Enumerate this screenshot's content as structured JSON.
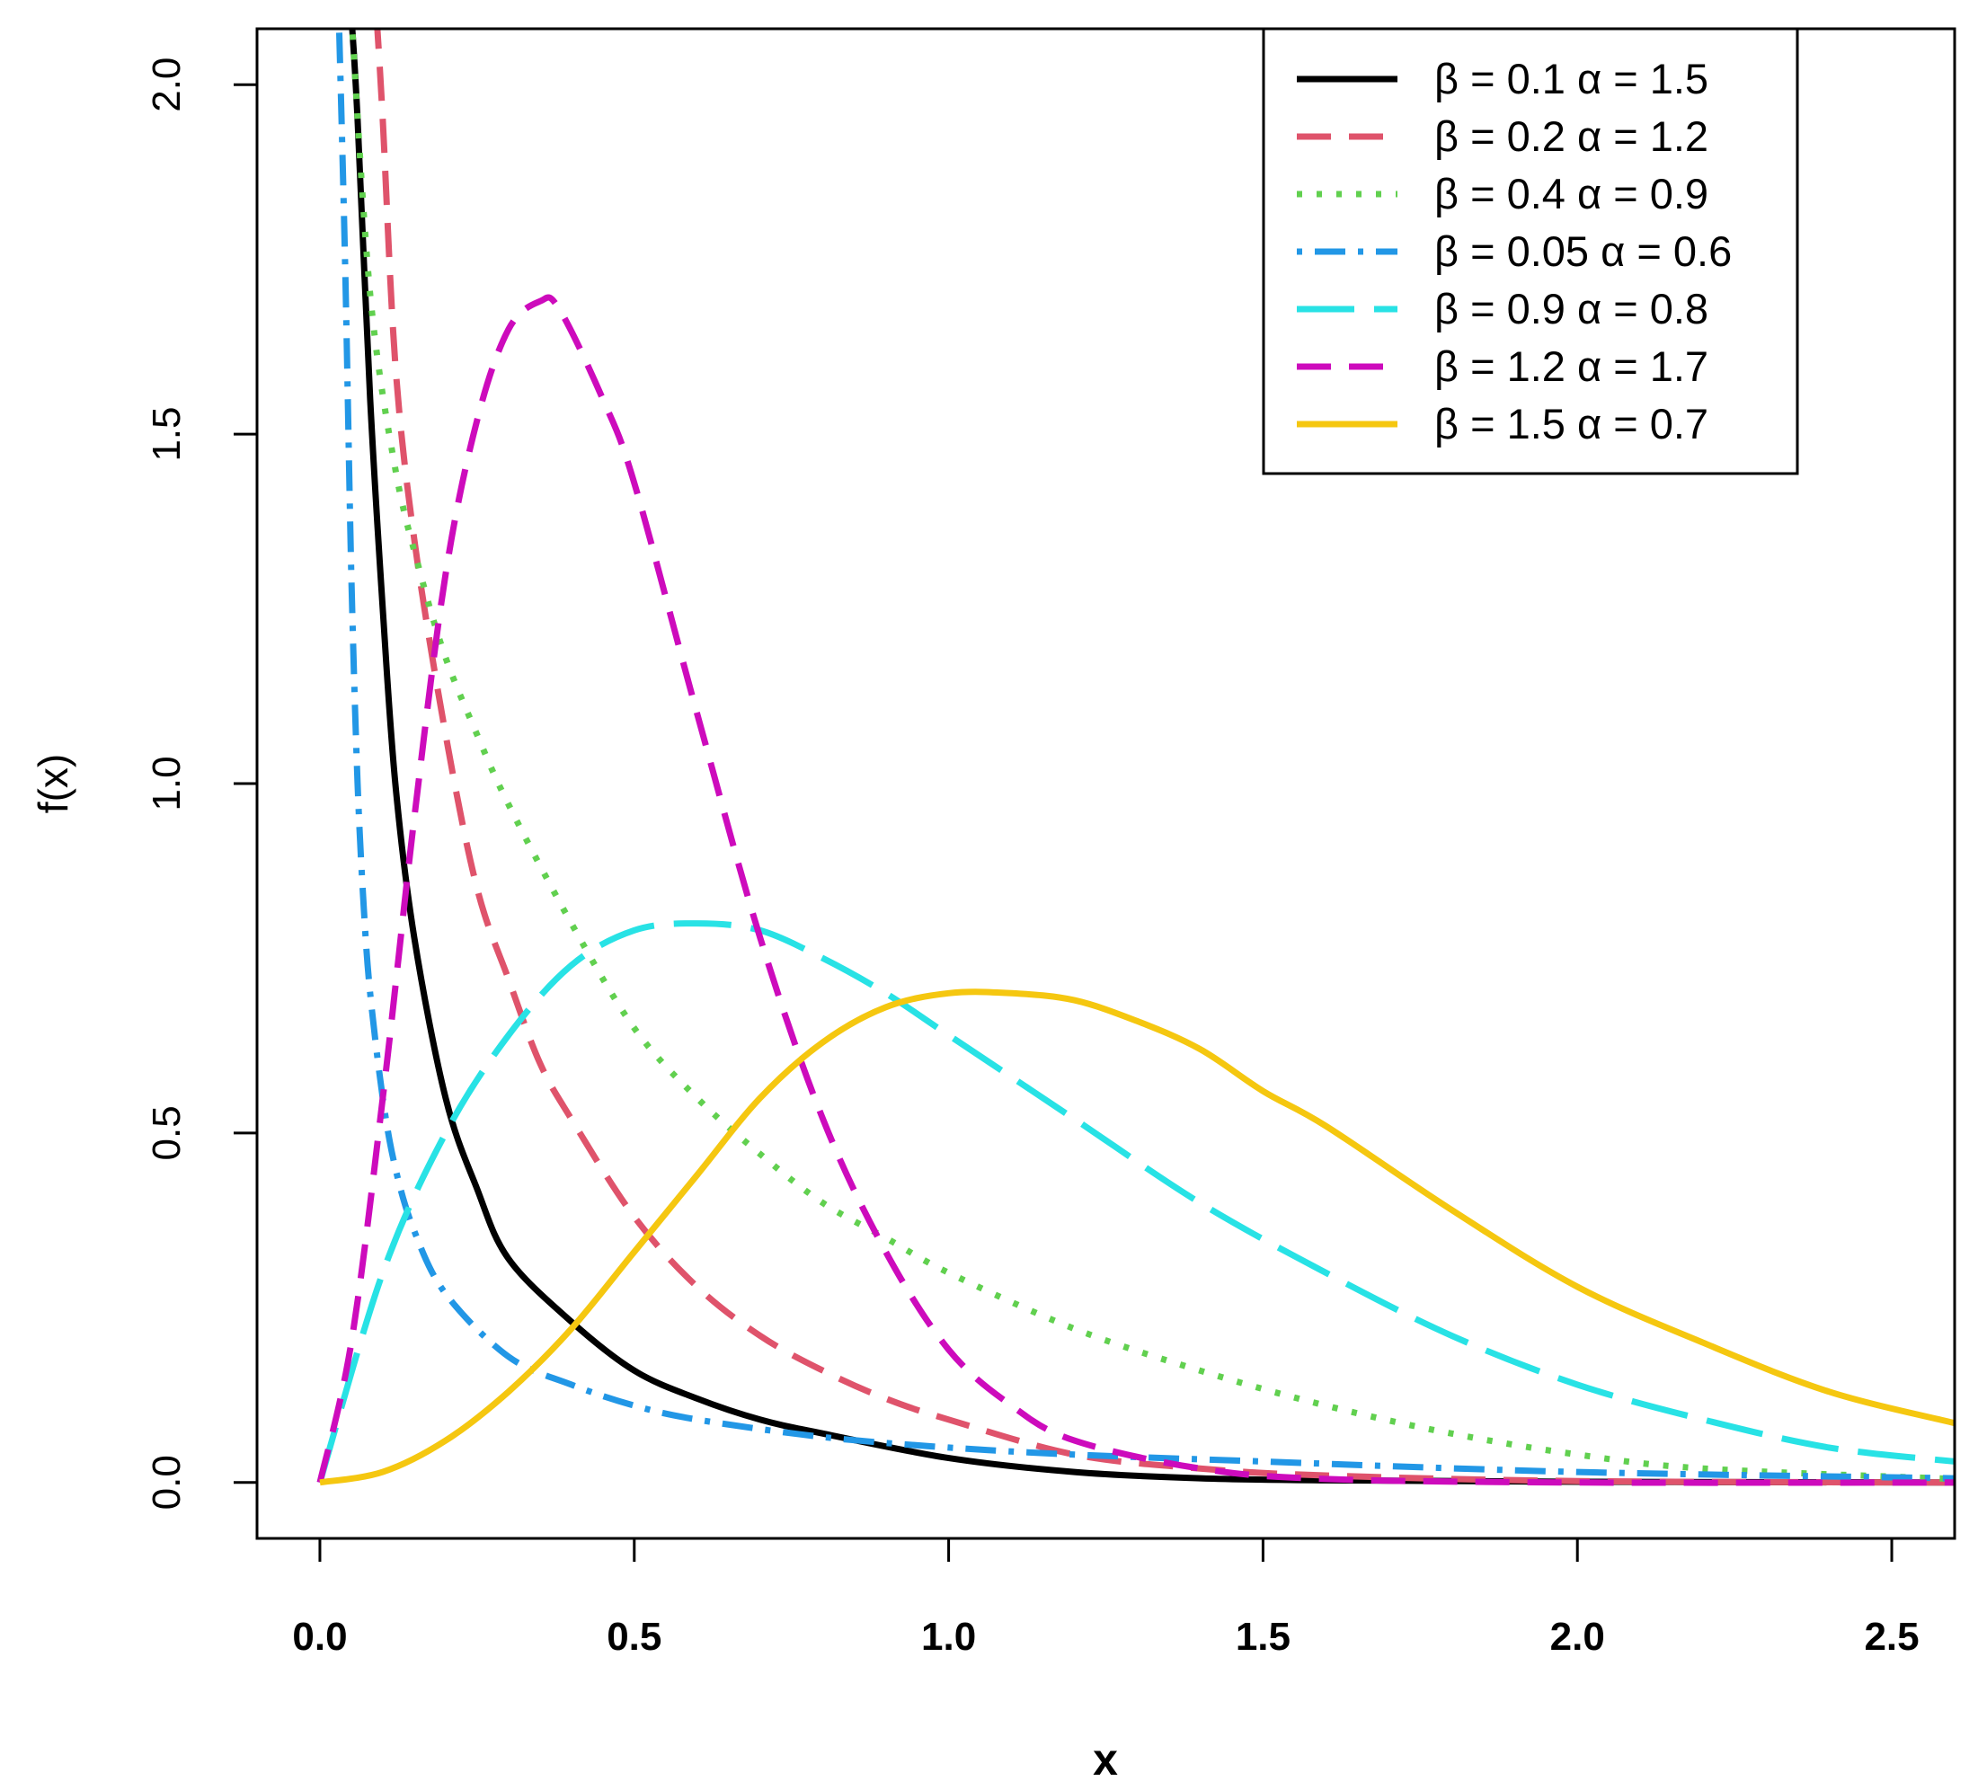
{
  "chart_data": {
    "type": "line",
    "xlabel": "x",
    "ylabel": "f(x)",
    "xlim": [
      -0.1,
      2.6
    ],
    "ylim": [
      -0.08,
      2.08
    ],
    "xticks": [
      "0.0",
      "0.5",
      "1.0",
      "1.5",
      "2.0",
      "2.5"
    ],
    "xtick_values": [
      0,
      0.5,
      1.0,
      1.5,
      2.0,
      2.5
    ],
    "yticks": [
      "0.0",
      "0.5",
      "1.0",
      "1.5",
      "2.0"
    ],
    "ytick_values": [
      0,
      0.5,
      1.0,
      1.5,
      2.0
    ],
    "grid": false,
    "legend_position": "top-right",
    "series": [
      {
        "name": "β = 0.1  α = 1.5",
        "color": "#000000",
        "style": "solid",
        "x": [
          0.05,
          0.06,
          0.08,
          0.1,
          0.12,
          0.15,
          0.2,
          0.25,
          0.3,
          0.4,
          0.5,
          0.6,
          0.7,
          0.8,
          1.0,
          1.2,
          1.4,
          1.6,
          2.0,
          2.6
        ],
        "y": [
          2.1,
          1.95,
          1.55,
          1.25,
          1.0,
          0.78,
          0.55,
          0.42,
          0.32,
          0.23,
          0.16,
          0.12,
          0.09,
          0.07,
          0.035,
          0.015,
          0.006,
          0.003,
          0.001,
          0.0
        ]
      },
      {
        "name": "β = 0.2  α = 1.2",
        "color": "#DF536B",
        "style": "dashed",
        "x": [
          0.09,
          0.1,
          0.12,
          0.15,
          0.2,
          0.25,
          0.3,
          0.35,
          0.4,
          0.5,
          0.6,
          0.7,
          0.8,
          0.9,
          1.0,
          1.2,
          1.4,
          1.6,
          2.0,
          2.6
        ],
        "y": [
          2.1,
          1.95,
          1.6,
          1.35,
          1.07,
          0.85,
          0.72,
          0.6,
          0.52,
          0.38,
          0.28,
          0.21,
          0.16,
          0.12,
          0.09,
          0.04,
          0.02,
          0.01,
          0.002,
          0.0
        ]
      },
      {
        "name": "β = 0.4  α = 0.9",
        "color": "#61D04F",
        "style": "dotted",
        "x": [
          0.05,
          0.08,
          0.12,
          0.16,
          0.2,
          0.25,
          0.3,
          0.4,
          0.5,
          0.6,
          0.7,
          0.8,
          0.9,
          1.0,
          1.2,
          1.4,
          1.6,
          1.8,
          2.0,
          2.2,
          2.6
        ],
        "y": [
          2.1,
          1.7,
          1.45,
          1.3,
          1.18,
          1.07,
          0.97,
          0.8,
          0.65,
          0.55,
          0.47,
          0.4,
          0.35,
          0.3,
          0.22,
          0.16,
          0.11,
          0.07,
          0.04,
          0.02,
          0.005
        ]
      },
      {
        "name": "β = 0.05  α = 0.6",
        "color": "#2297E6",
        "style": "dotdash",
        "x": [
          0.03,
          0.04,
          0.05,
          0.06,
          0.07,
          0.08,
          0.1,
          0.12,
          0.15,
          0.2,
          0.3,
          0.4,
          0.5,
          0.6,
          0.8,
          1.0,
          1.2,
          1.5,
          2.0,
          2.6
        ],
        "y": [
          2.1,
          1.75,
          1.3,
          1.0,
          0.82,
          0.7,
          0.55,
          0.45,
          0.36,
          0.27,
          0.18,
          0.14,
          0.11,
          0.09,
          0.065,
          0.05,
          0.04,
          0.03,
          0.015,
          0.006
        ]
      },
      {
        "name": "β = 0.9  α = 0.8",
        "color": "#28E2E5",
        "style": "longdash",
        "x": [
          0.0,
          0.1,
          0.2,
          0.3,
          0.4,
          0.5,
          0.6,
          0.7,
          0.8,
          0.9,
          1.0,
          1.2,
          1.4,
          1.6,
          1.8,
          2.0,
          2.2,
          2.4,
          2.6
        ],
        "y": [
          0.0,
          0.3,
          0.5,
          0.64,
          0.74,
          0.79,
          0.8,
          0.79,
          0.75,
          0.7,
          0.64,
          0.52,
          0.4,
          0.3,
          0.21,
          0.14,
          0.09,
          0.05,
          0.03
        ]
      },
      {
        "name": "β = 1.2  α = 1.7",
        "color": "#CD0BBC",
        "style": "dashed",
        "x": [
          0.0,
          0.05,
          0.1,
          0.15,
          0.2,
          0.25,
          0.3,
          0.35,
          0.38,
          0.45,
          0.5,
          0.6,
          0.7,
          0.8,
          0.9,
          1.0,
          1.1,
          1.2,
          1.4,
          1.6,
          2.0,
          2.6
        ],
        "y": [
          0.0,
          0.2,
          0.55,
          0.95,
          1.3,
          1.52,
          1.65,
          1.69,
          1.68,
          1.55,
          1.43,
          1.1,
          0.78,
          0.52,
          0.33,
          0.19,
          0.11,
          0.06,
          0.02,
          0.005,
          0.0,
          0.0
        ]
      },
      {
        "name": "β = 1.5  α = 0.7",
        "color": "#F5C710",
        "style": "solid",
        "x": [
          0.0,
          0.1,
          0.2,
          0.3,
          0.4,
          0.5,
          0.6,
          0.7,
          0.8,
          0.9,
          1.0,
          1.1,
          1.2,
          1.3,
          1.4,
          1.5,
          1.6,
          1.8,
          2.0,
          2.2,
          2.4,
          2.6
        ],
        "y": [
          0.0,
          0.015,
          0.06,
          0.13,
          0.22,
          0.33,
          0.44,
          0.55,
          0.63,
          0.68,
          0.7,
          0.7,
          0.69,
          0.66,
          0.62,
          0.56,
          0.51,
          0.39,
          0.28,
          0.2,
          0.13,
          0.085
        ]
      }
    ]
  }
}
